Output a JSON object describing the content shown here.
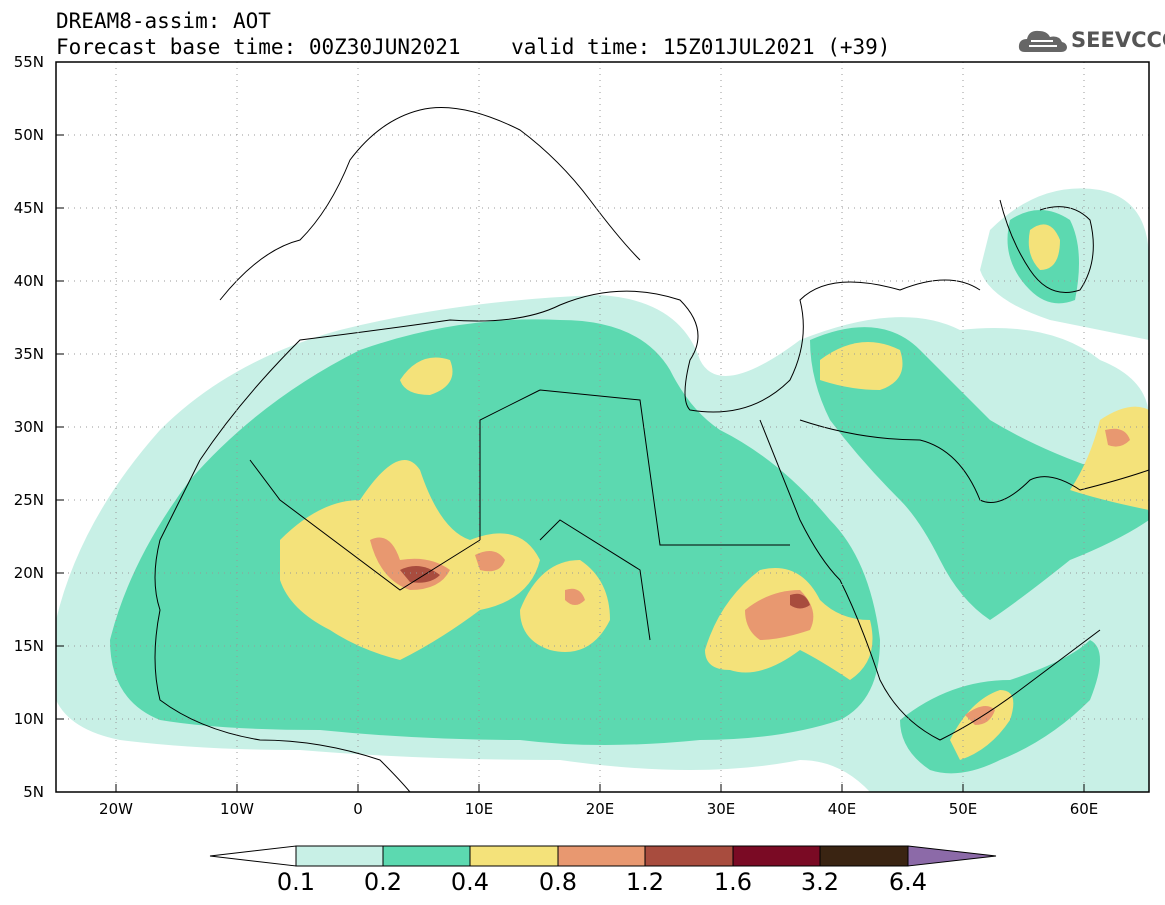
{
  "header": {
    "title_line1": "DREAM8-assim: AOT",
    "title_line2": "Forecast base time: 00Z30JUN2021    valid time: 15Z01JUL2021 (+39)",
    "logo_text": "SEEVCCC"
  },
  "map": {
    "lat_labels": [
      "55N",
      "50N",
      "45N",
      "40N",
      "35N",
      "30N",
      "25N",
      "20N",
      "15N",
      "10N",
      "5N"
    ],
    "lon_labels": [
      "20W",
      "10W",
      "0",
      "10E",
      "20E",
      "30E",
      "40E",
      "50E",
      "60E"
    ],
    "lon_range": [
      -25,
      65
    ],
    "lat_range": [
      5,
      55
    ],
    "grid": "dotted"
  },
  "colorbar": {
    "labels": [
      "0.1",
      "0.2",
      "0.4",
      "0.8",
      "1.2",
      "1.6",
      "3.2",
      "6.4"
    ],
    "colors": [
      "#c8f0e6",
      "#5cd9b0",
      "#f4e27a",
      "#e89870",
      "#a84c3e",
      "#7a0a24",
      "#3a2412",
      "#8c6aa8"
    ],
    "below_color": "#ffffff"
  }
}
